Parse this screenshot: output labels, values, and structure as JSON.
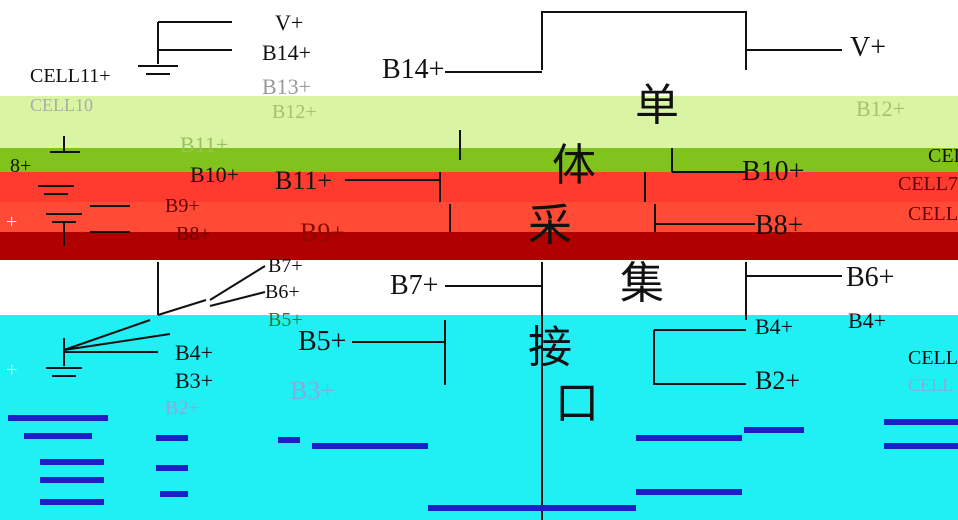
{
  "colors": {
    "band_light_green": "#d9f5a4",
    "band_green": "#7fc31c",
    "band_red": "#ff3b2f",
    "band_orange_red": "#ff4a35",
    "band_dark_red": "#b00000",
    "band_cyan": "#20f0f3",
    "band_blue_stroke": "#1e1ec8",
    "line": "#111111"
  },
  "chip": {
    "chars": [
      "单",
      "体",
      "采",
      "集",
      "接",
      "口"
    ],
    "right_top_label": "V+"
  },
  "left_stack": {
    "top_labels": [
      "V+",
      "B14+",
      "B13+",
      "B12+",
      "B11+",
      "B10+",
      "B9+",
      "B8+",
      "B7+",
      "B6+",
      "B5+",
      "B4+",
      "B3+",
      "B2+"
    ],
    "cells": [
      "CELL11+",
      "CELL10"
    ],
    "other": [
      "8+",
      "+",
      "+"
    ]
  },
  "chip_left_labels": [
    "B14+",
    "B11+",
    "B9+",
    "B7+",
    "B5+",
    "B3+"
  ],
  "chip_right_labels": [
    "B12+",
    "B10+",
    "B8+",
    "B6+",
    "B4+",
    "B2+"
  ],
  "right_cells": [
    "CELL",
    "CELL7",
    "CELL",
    "CELL",
    "CELL"
  ],
  "right_other": [
    "B4+"
  ]
}
